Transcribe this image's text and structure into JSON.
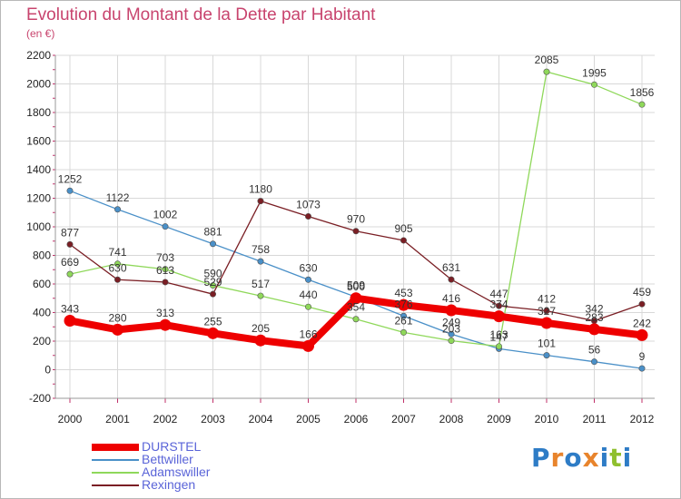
{
  "header": {
    "title": "Evolution du Montant de la Dette par Habitant",
    "unit": "(en €)"
  },
  "brand": {
    "text": "Proxiti",
    "colors": [
      "#2e7cc6",
      "#e8842c",
      "#2e7cc6",
      "#e8842c",
      "#2e7cc6",
      "#8fbf2e",
      "#2e7cc6"
    ]
  },
  "colors": {
    "title": "#c8446e",
    "legend_text": "#5a64d8",
    "grid": "#d8d8d8",
    "tick_mark": "#c0306a"
  },
  "chart_data": {
    "type": "line",
    "title": "Evolution du Montant de la Dette par Habitant",
    "ylabel": "(en €)",
    "x": [
      "2000",
      "2001",
      "2002",
      "2003",
      "2004",
      "2005",
      "2006",
      "2007",
      "2008",
      "2009",
      "2010",
      "2011",
      "2012"
    ],
    "ylim": [
      -200,
      2200
    ],
    "yticks": [
      -200,
      0,
      200,
      400,
      600,
      800,
      1000,
      1200,
      1400,
      1600,
      1800,
      2000,
      2200
    ],
    "grid": true,
    "legend_position": "bottom-left",
    "series": [
      {
        "name": "DURSTEL",
        "color": "#ee0000",
        "values": [
          343,
          280,
          313,
          255,
          205,
          166,
          500,
          453,
          416,
          374,
          327,
          283,
          242
        ],
        "labels": [
          "343",
          "280",
          "313",
          "255",
          "205",
          "166",
          "500",
          "453",
          "416",
          "374",
          "327",
          "283",
          "242"
        ]
      },
      {
        "name": "Bettwiller",
        "color": "#4a90c8",
        "values": [
          1252,
          1122,
          1002,
          881,
          758,
          630,
          509,
          376,
          249,
          147,
          101,
          56,
          9
        ],
        "labels": [
          "1252",
          "1122",
          "1002",
          "881",
          "758",
          "630",
          "509",
          "376",
          "249",
          "147",
          "101",
          "56",
          "9"
        ]
      },
      {
        "name": "Adamswiller",
        "color": "#8fd85a",
        "values": [
          669,
          741,
          703,
          590,
          517,
          440,
          354,
          261,
          203,
          163,
          2085,
          1995,
          1856
        ],
        "labels": [
          "669",
          "741",
          "703",
          "590",
          "517",
          "440",
          "354",
          "261",
          "203",
          "163",
          "2085",
          "1995",
          "1856"
        ]
      },
      {
        "name": "Rexingen",
        "color": "#7a1e24",
        "values": [
          877,
          630,
          613,
          529,
          1180,
          1073,
          970,
          905,
          631,
          447,
          412,
          342,
          459
        ],
        "labels": [
          "877",
          "630",
          "613",
          "529",
          "1180",
          "1073",
          "970",
          "905",
          "631",
          "447",
          "412",
          "342",
          "459"
        ]
      }
    ]
  }
}
